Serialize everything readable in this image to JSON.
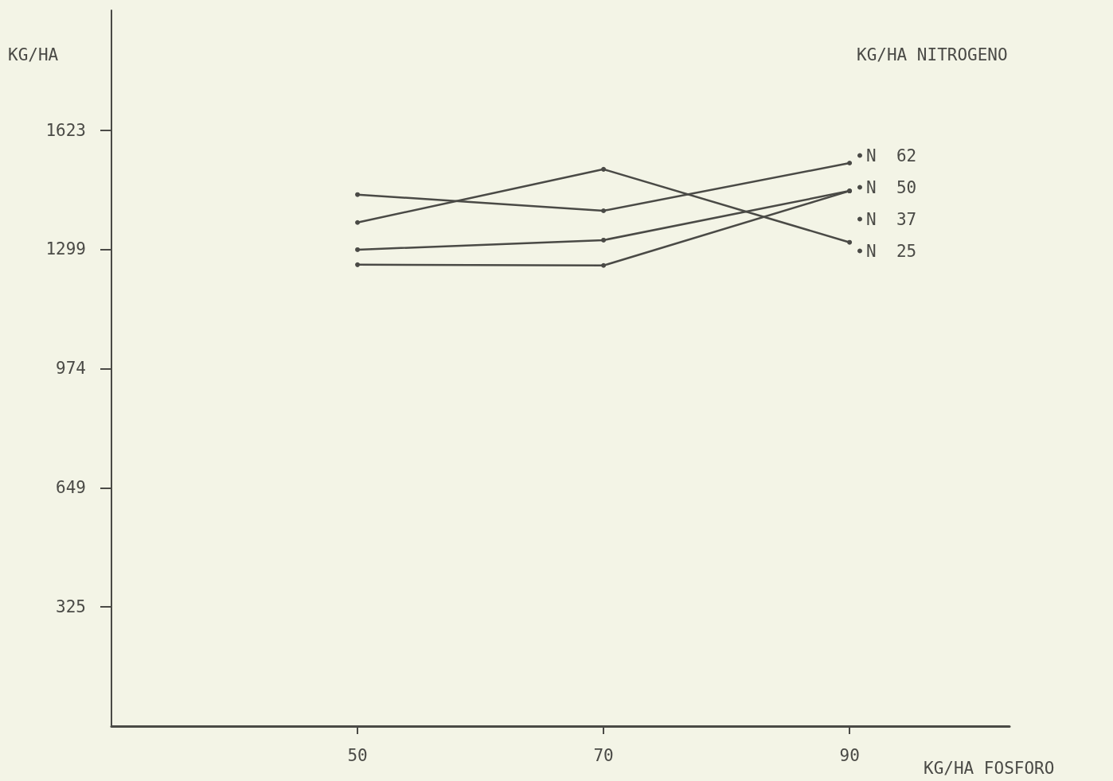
{
  "chart_data": {
    "type": "line",
    "xlabel": "KG/HA FOSFORO",
    "ylabel": "KG/HA",
    "legend_title": "KG/HA NITROGENO",
    "x": [
      50,
      70,
      90
    ],
    "xlim": [
      30,
      103
    ],
    "xticks": [
      50,
      70,
      90
    ],
    "ylim": [
      0,
      1950
    ],
    "yticks": [
      325,
      649,
      974,
      1299,
      1623
    ],
    "series": [
      {
        "name": "N  62",
        "color": "#4a4a46",
        "values": [
          1448,
          1404,
          1534
        ]
      },
      {
        "name": "N  50",
        "color": "#4a4a46",
        "values": [
          1298,
          1324,
          1458
        ]
      },
      {
        "name": "N  37",
        "color": "#4a4a46",
        "values": [
          1372,
          1517,
          1318
        ]
      },
      {
        "name": "N  25",
        "color": "#4a4a46",
        "values": [
          1257,
          1255,
          1458
        ]
      }
    ],
    "marker": "circle",
    "line_style": "solid",
    "grid": false,
    "legend": "right"
  }
}
